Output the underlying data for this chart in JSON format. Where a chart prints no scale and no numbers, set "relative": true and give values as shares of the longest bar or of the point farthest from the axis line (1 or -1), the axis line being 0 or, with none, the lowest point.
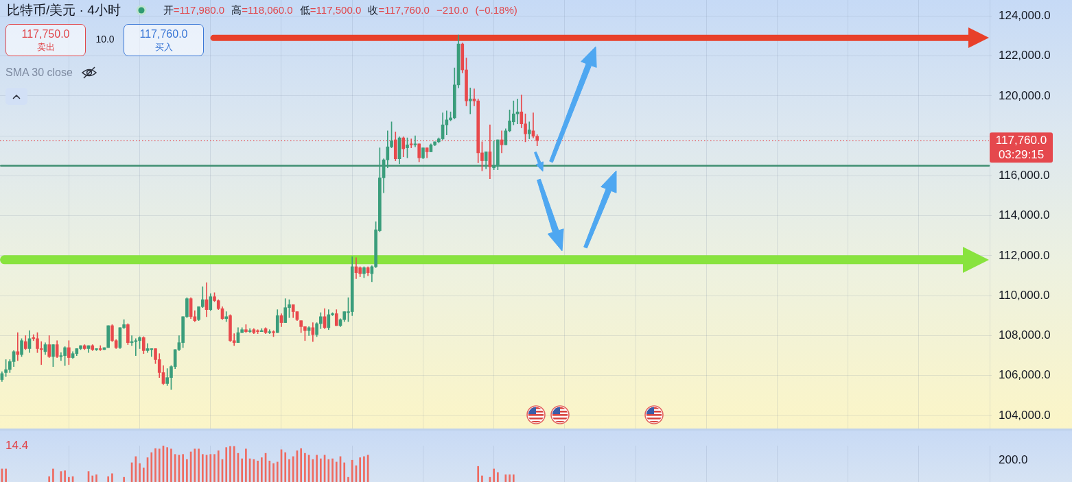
{
  "chart_data": [
    {
      "type": "candlestick",
      "title": "比特币/美元 · 4小时",
      "subtitle": "开=117,980.0 高=118,060.0 低=117,500.0 收=117,760.0 −210.0 (−0.18%)",
      "categories": [
        null,
        null,
        null,
        null,
        null,
        null,
        null,
        null,
        null,
        null,
        null,
        null,
        null,
        null,
        null,
        null,
        null,
        null,
        null,
        null,
        null,
        null,
        null,
        null,
        null,
        null,
        null,
        null,
        null,
        null,
        null,
        null,
        null,
        null,
        null,
        null,
        null,
        null,
        null,
        null,
        null,
        null,
        null,
        null,
        null,
        null,
        null,
        null,
        null,
        null,
        null,
        null,
        null,
        null,
        null,
        null,
        null,
        null,
        null,
        null,
        null,
        null,
        null,
        null,
        null,
        null,
        null,
        null,
        null,
        null,
        null,
        null,
        null,
        null,
        null,
        null,
        null,
        null,
        null,
        null,
        null,
        null,
        null,
        null,
        null,
        null,
        null,
        null,
        null,
        null,
        null,
        null,
        null,
        null,
        null,
        null,
        null,
        null,
        null,
        null,
        null,
        null,
        null,
        null,
        null,
        null,
        null,
        null,
        null,
        null,
        null,
        null,
        null,
        null,
        null,
        null,
        null,
        null,
        null,
        null,
        null,
        null,
        null,
        null,
        null,
        null,
        null,
        null,
        null,
        null,
        null,
        null,
        null,
        null,
        null,
        null,
        null,
        null,
        null,
        null,
        null,
        null,
        null,
        null,
        null,
        null,
        null,
        null,
        null,
        null,
        null,
        null,
        null,
        null,
        null,
        null,
        null,
        null,
        null,
        null,
        null,
        null,
        null,
        null,
        null,
        null,
        null,
        null,
        null,
        null,
        null,
        null,
        null,
        null,
        null,
        null,
        null,
        null,
        null,
        null,
        null,
        null,
        null,
        null,
        null,
        null,
        null,
        null,
        null,
        null,
        null,
        null,
        null,
        null,
        null,
        null,
        null,
        null,
        null,
        null,
        null,
        null,
        null,
        null,
        null,
        null,
        null,
        null,
        null,
        null,
        null,
        null,
        null,
        null,
        null,
        null,
        null,
        null,
        null,
        null,
        null,
        null,
        null,
        null,
        null,
        null,
        null,
        null,
        null,
        null,
        null,
        null,
        null,
        null,
        null,
        null,
        null,
        null,
        null,
        null,
        null,
        null,
        null,
        null,
        null,
        null,
        null,
        null,
        null,
        null,
        null,
        null
      ],
      "ohlc": [
        [
          105800,
          106200,
          105700,
          106100
        ],
        [
          106150,
          106800,
          105950,
          106300
        ],
        [
          106300,
          106800,
          106150,
          106700
        ],
        [
          106700,
          107250,
          106450,
          107200
        ],
        [
          107200,
          108150,
          106750,
          107050
        ],
        [
          107050,
          107850,
          106950,
          107750
        ],
        [
          107700,
          108000,
          107300,
          107350
        ],
        [
          107350,
          108250,
          107150,
          107850
        ],
        [
          107900,
          108050,
          107750,
          107850
        ],
        [
          107850,
          108150,
          107150,
          107350
        ],
        [
          107350,
          107700,
          106550,
          107300
        ],
        [
          107200,
          107650,
          107050,
          107550
        ],
        [
          107550,
          108000,
          106900,
          106950
        ],
        [
          106950,
          107550,
          106450,
          107550
        ],
        [
          107550,
          107750,
          106900,
          106950
        ],
        [
          106950,
          107150,
          106750,
          107000
        ],
        [
          107000,
          107450,
          106500,
          107400
        ],
        [
          107400,
          107750,
          106550,
          106900
        ],
        [
          106900,
          107200,
          106850,
          107100
        ],
        [
          107100,
          107350,
          107000,
          107350
        ],
        [
          107350,
          107500,
          107300,
          107500
        ],
        [
          107500,
          107550,
          107300,
          107350
        ],
        [
          107350,
          107500,
          107150,
          107500
        ],
        [
          107500,
          107550,
          107250,
          107300
        ],
        [
          107300,
          107350,
          107250,
          107350
        ],
        [
          107350,
          107500,
          107250,
          107300
        ],
        [
          107300,
          107400,
          107300,
          107400
        ],
        [
          107400,
          108500,
          107400,
          108500
        ],
        [
          108500,
          108550,
          107700,
          107750
        ],
        [
          107750,
          107800,
          107350,
          107400
        ],
        [
          107400,
          108400,
          107350,
          108400
        ],
        [
          108400,
          108800,
          108350,
          108550
        ],
        [
          108550,
          108600,
          107550,
          107650
        ],
        [
          107650,
          108000,
          107500,
          107700
        ],
        [
          107700,
          107850,
          107000,
          107750
        ],
        [
          107750,
          107950,
          107350,
          107900
        ],
        [
          107900,
          107950,
          107100,
          107250
        ],
        [
          107250,
          107600,
          107150,
          107350
        ],
        [
          107300,
          107350,
          106950,
          107350
        ],
        [
          107350,
          107350,
          106600,
          106800
        ],
        [
          106800,
          107100,
          105900,
          106150
        ],
        [
          106150,
          106500,
          105550,
          105600
        ],
        [
          105600,
          106350,
          105500,
          105900
        ],
        [
          105900,
          106500,
          105300,
          106450
        ],
        [
          106450,
          107300,
          106350,
          107300
        ],
        [
          107300,
          108000,
          107250,
          107650
        ],
        [
          107650,
          108950,
          107400,
          108950
        ],
        [
          108950,
          109900,
          108900,
          109850
        ],
        [
          109850,
          109900,
          108850,
          108950
        ],
        [
          108950,
          109250,
          108700,
          108750
        ],
        [
          108800,
          109450,
          108750,
          109450
        ],
        [
          109450,
          110450,
          109400,
          109800
        ],
        [
          109800,
          110650,
          108950,
          109300
        ],
        [
          109300,
          110100,
          109250,
          109950
        ],
        [
          109950,
          110150,
          109700,
          109750
        ],
        [
          109750,
          109800,
          109300,
          109350
        ],
        [
          109350,
          109450,
          108800,
          108850
        ],
        [
          108850,
          109200,
          108700,
          108950
        ],
        [
          109000,
          109050,
          107700,
          107750
        ],
        [
          107750,
          108100,
          107500,
          107650
        ],
        [
          107650,
          108400,
          107650,
          108150
        ],
        [
          108150,
          108400,
          108150,
          108300
        ],
        [
          108300,
          108550,
          108150,
          108200
        ],
        [
          108200,
          108350,
          108150,
          108250
        ],
        [
          108300,
          108350,
          108100,
          108150
        ],
        [
          108250,
          108300,
          108100,
          108200
        ],
        [
          108200,
          108350,
          108200,
          108250
        ],
        [
          108350,
          108400,
          108100,
          108150
        ],
        [
          108150,
          108300,
          108100,
          108200
        ],
        [
          108200,
          108250,
          107950,
          108150
        ],
        [
          108150,
          109300,
          108150,
          109000
        ],
        [
          109000,
          109100,
          108450,
          108650
        ],
        [
          108650,
          109850,
          108650,
          109400
        ],
        [
          109400,
          109800,
          108900,
          109550
        ],
        [
          109550,
          109550,
          108900,
          109200
        ],
        [
          109200,
          109200,
          108750,
          108800
        ],
        [
          108750,
          108750,
          108150,
          108450
        ],
        [
          108450,
          108450,
          107750,
          108250
        ],
        [
          108250,
          108450,
          108000,
          108400
        ],
        [
          108400,
          108650,
          107700,
          108050
        ],
        [
          108050,
          108650,
          107950,
          108600
        ],
        [
          108600,
          109150,
          108350,
          108950
        ],
        [
          108950,
          109350,
          108350,
          108400
        ],
        [
          108400,
          109300,
          108300,
          109050
        ],
        [
          109050,
          109150,
          109000,
          109100
        ],
        [
          109100,
          109300,
          108500,
          108500
        ],
        [
          108500,
          108850,
          108450,
          108800
        ],
        [
          108800,
          109200,
          108700,
          109200
        ],
        [
          109150,
          109900,
          108700,
          109200
        ],
        [
          109200,
          111950,
          109000,
          111450
        ],
        [
          111450,
          111900,
          110850,
          111150
        ],
        [
          111400,
          111450,
          110950,
          111100
        ],
        [
          111100,
          111450,
          110900,
          111400
        ],
        [
          111400,
          111450,
          111000,
          111150
        ],
        [
          111100,
          111500,
          110700,
          111450
        ],
        [
          111450,
          113700,
          111400,
          113300
        ],
        [
          113250,
          117400,
          113200,
          115900
        ],
        [
          115900,
          116850,
          115150,
          116800
        ],
        [
          116800,
          118250,
          116400,
          117450
        ],
        [
          117450,
          118700,
          117400,
          117750
        ],
        [
          117800,
          118200,
          116750,
          116850
        ],
        [
          116850,
          117950,
          116600,
          117900
        ],
        [
          117900,
          117950,
          116950,
          117350
        ],
        [
          117400,
          117900,
          116900,
          117550
        ],
        [
          117600,
          117850,
          117400,
          117550
        ],
        [
          117550,
          118000,
          117450,
          117600
        ],
        [
          117600,
          117600,
          116700,
          116900
        ],
        [
          116900,
          117400,
          116850,
          117400
        ],
        [
          117400,
          117400,
          116900,
          117200
        ],
        [
          117200,
          117600,
          117200,
          117550
        ],
        [
          117550,
          117700,
          117500,
          117700
        ],
        [
          117700,
          117900,
          117650,
          117850
        ],
        [
          117850,
          119150,
          117800,
          118550
        ],
        [
          118550,
          119250,
          118050,
          118800
        ],
        [
          118800,
          119200,
          118750,
          118900
        ],
        [
          118900,
          121400,
          118850,
          120550
        ],
        [
          120550,
          123050,
          120400,
          122600
        ],
        [
          122600,
          122650,
          121150,
          121300
        ],
        [
          121300,
          121900,
          119500,
          119750
        ],
        [
          119750,
          120400,
          119100,
          119850
        ],
        [
          119850,
          120350,
          119500,
          119750
        ],
        [
          119750,
          119850,
          116650,
          117150
        ],
        [
          117150,
          117700,
          116250,
          116750
        ],
        [
          116750,
          117200,
          116350,
          117200
        ],
        [
          117200,
          118550,
          115850,
          116450
        ],
        [
          116400,
          117750,
          116300,
          116500
        ],
        [
          116500,
          117800,
          116300,
          117800
        ],
        [
          117800,
          118250,
          117150,
          117550
        ],
        [
          117550,
          118350,
          117550,
          118250
        ],
        [
          118250,
          119300,
          118200,
          118750
        ],
        [
          118700,
          119750,
          118550,
          119100
        ],
        [
          119100,
          119850,
          118600,
          119200
        ],
        [
          119200,
          120050,
          118400,
          118600
        ],
        [
          118600,
          119100,
          117700,
          118100
        ],
        [
          118100,
          118700,
          117850,
          118300
        ],
        [
          118250,
          119150,
          117900,
          117980
        ],
        [
          117980,
          118060,
          117500,
          117760
        ],
        null,
        null,
        null,
        null,
        null,
        null,
        null,
        null,
        null,
        null,
        null,
        null,
        null,
        null,
        null,
        null,
        null,
        null,
        null,
        null,
        null,
        null,
        null,
        null,
        null,
        null,
        null,
        null,
        null,
        null,
        null,
        null,
        null,
        null,
        null,
        null,
        null,
        null,
        null,
        null,
        null,
        null,
        null,
        null,
        null,
        null,
        null,
        null,
        null,
        null,
        null,
        null,
        null,
        null,
        null,
        null,
        null,
        null,
        null,
        null,
        null,
        null,
        null,
        null,
        null,
        null,
        null,
        null,
        null,
        null,
        null,
        null,
        null,
        null,
        null,
        null,
        null,
        null,
        null,
        null,
        null,
        null,
        null,
        null,
        null,
        null,
        null,
        null,
        null,
        null,
        null,
        null,
        null,
        null,
        null,
        null,
        null,
        null,
        null,
        null,
        null,
        null,
        null,
        null,
        null,
        null,
        null,
        null,
        null,
        null,
        null,
        null,
        null,
        null,
        null
      ],
      "colors": [
        "#3a9d7b",
        "#3a9d7b",
        "#3a9d7b",
        "#3a9d7b",
        "#e8494c",
        "#3a9d7b",
        "#e8494c",
        "#3a9d7b",
        "#e8494c",
        "#e8494c",
        "#e8494c",
        "#3a9d7b",
        "#e8494c",
        "#3a9d7b",
        "#e8494c",
        "#3a9d7b",
        "#3a9d7b",
        "#e8494c",
        "#3a9d7b",
        "#3a9d7b",
        "#3a9d7b",
        "#e8494c",
        "#3a9d7b",
        "#e8494c",
        "#3a9d7b",
        "#e8494c",
        "#3a9d7b",
        "#3a9d7b",
        "#e8494c",
        "#e8494c",
        "#3a9d7b",
        "#3a9d7b",
        "#e8494c",
        "#3a9d7b",
        "#3a9d7b",
        "#3a9d7b",
        "#e8494c",
        "#3a9d7b",
        "#3a9d7b",
        "#e8494c",
        "#e8494c",
        "#e8494c",
        "#3a9d7b",
        "#3a9d7b",
        "#3a9d7b",
        "#3a9d7b",
        "#3a9d7b",
        "#3a9d7b",
        "#e8494c",
        "#e8494c",
        "#3a9d7b",
        "#3a9d7b",
        "#e8494c",
        "#3a9d7b",
        "#e8494c",
        "#e8494c",
        "#e8494c",
        "#3a9d7b",
        "#e8494c",
        "#e8494c",
        "#3a9d7b",
        "#3a9d7b",
        "#e8494c",
        "#3a9d7b",
        "#e8494c",
        "#e8494c",
        "#3a9d7b",
        "#e8494c",
        "#3a9d7b",
        "#e8494c",
        "#3a9d7b",
        "#e8494c",
        "#3a9d7b",
        "#3a9d7b",
        "#e8494c",
        "#e8494c",
        "#e8494c",
        "#e8494c",
        "#3a9d7b",
        "#e8494c",
        "#3a9d7b",
        "#3a9d7b",
        "#e8494c",
        "#3a9d7b",
        "#3a9d7b",
        "#e8494c",
        "#3a9d7b",
        "#3a9d7b",
        "#3a9d7b",
        "#3a9d7b",
        "#e8494c",
        "#e8494c",
        "#3a9d7b",
        "#e8494c",
        "#3a9d7b",
        "#3a9d7b",
        "#3a9d7b",
        "#3a9d7b",
        "#3a9d7b",
        "#3a9d7b",
        "#e8494c",
        "#3a9d7b",
        "#e8494c",
        "#3a9d7b",
        "#e8494c",
        "#3a9d7b",
        "#e8494c",
        "#3a9d7b",
        "#e8494c",
        "#3a9d7b",
        "#3a9d7b",
        "#3a9d7b",
        "#3a9d7b",
        "#3a9d7b",
        "#3a9d7b",
        "#3a9d7b",
        "#3a9d7b",
        "#e8494c",
        "#e8494c",
        "#3a9d7b",
        "#e8494c",
        "#e8494c",
        "#e8494c",
        "#3a9d7b",
        "#e8494c",
        "#3a9d7b",
        "#3a9d7b",
        "#e8494c",
        "#3a9d7b",
        "#3a9d7b",
        "#3a9d7b",
        "#3a9d7b",
        "#e8494c",
        "#e8494c",
        "#3a9d7b",
        "#e8494c",
        "#e8494c",
        null,
        null,
        null,
        null,
        null,
        null,
        null,
        null,
        null,
        null,
        null,
        null,
        null,
        null,
        null,
        null,
        null,
        null,
        null,
        null,
        null,
        null,
        null,
        null,
        null,
        null,
        null,
        null,
        null,
        null,
        null,
        null,
        null,
        null,
        null,
        null,
        null,
        null,
        null,
        null,
        null,
        null,
        null,
        null,
        null,
        null,
        null,
        null,
        null,
        null,
        null,
        null,
        null,
        null,
        null,
        null,
        null,
        null,
        null,
        null,
        null,
        null,
        null,
        null,
        null,
        null,
        null,
        null,
        null,
        null,
        null,
        null,
        null,
        null,
        null,
        null,
        null,
        null,
        null,
        null,
        null,
        null,
        null,
        null,
        null,
        null,
        null,
        null,
        null,
        null,
        null,
        null,
        null,
        null,
        null,
        null,
        null,
        null,
        null,
        null,
        null,
        null,
        null,
        null,
        null,
        null,
        null,
        null,
        null,
        null,
        null,
        null,
        null,
        null,
        null
      ],
      "ylim": [
        103350,
        124800
      ],
      "yticks": [
        {
          "value": 104000,
          "label": "104,000.0"
        },
        {
          "value": 106000,
          "label": "106,000.0"
        },
        {
          "value": 108000,
          "label": "108,000.0"
        },
        {
          "value": 110000,
          "label": "110,000.0"
        },
        {
          "value": 112000,
          "label": "112,000.0"
        },
        {
          "value": 114000,
          "label": "114,000.0"
        },
        {
          "value": 116000,
          "label": "116,000.0"
        },
        {
          "value": 118000,
          "label": null
        },
        {
          "value": 120000,
          "label": "120,000.0"
        },
        {
          "value": 122000,
          "label": "122,000.0"
        },
        {
          "value": 124000,
          "label": "124,000.0"
        }
      ],
      "grid": true,
      "tick_labels": "y",
      "ref_lines": [
        {
          "axis": "y",
          "value": 122900,
          "color": "#e8402a"
        },
        {
          "axis": "y",
          "value": 116500,
          "color": "#3f8f72"
        },
        {
          "axis": "y",
          "value": 111800,
          "color": "#88e33e"
        },
        {
          "axis": "y",
          "value": 117760,
          "label": "117,760.0",
          "color": "#e5484d",
          "line_style": "dotted"
        }
      ],
      "annotations": [
        "117,750.0",
        "卖出",
        "10.0",
        "117,760.0",
        "买入",
        "SMA 30 close",
        "03:29:15"
      ]
    },
    {
      "type": "bar",
      "relative": true,
      "color": "#ee6a60",
      "grid": "x",
      "categories": [
        null,
        null,
        null,
        null,
        null,
        null,
        null,
        null,
        null,
        null,
        null,
        null,
        null,
        null,
        null,
        null,
        null,
        null,
        null,
        null,
        null,
        null,
        null,
        null,
        null,
        null,
        null,
        null,
        null,
        null,
        null,
        null,
        null,
        null,
        null,
        null,
        null,
        null,
        null,
        null,
        null,
        null,
        null,
        null,
        null,
        null,
        null,
        null,
        null,
        null,
        null,
        null,
        null,
        null,
        null,
        null,
        null,
        null,
        null,
        null,
        null,
        null,
        null,
        null,
        null,
        null,
        null,
        null,
        null,
        null,
        null,
        null,
        null,
        null,
        null,
        null,
        null,
        null,
        null,
        null,
        null,
        null,
        null,
        null,
        null,
        null,
        null,
        null,
        null,
        null,
        null,
        null,
        null,
        null,
        null,
        null,
        null,
        null,
        null,
        null,
        null,
        null,
        null,
        null,
        null,
        null,
        null,
        null,
        null,
        null,
        null,
        null,
        null,
        null,
        null,
        null,
        null,
        null,
        null,
        null,
        null,
        null,
        null,
        null,
        null,
        null,
        null,
        null,
        null,
        null,
        null,
        null,
        null,
        null,
        null,
        null,
        null,
        null,
        null,
        null,
        null,
        null,
        null,
        null,
        null,
        null,
        null,
        null,
        null,
        null,
        null,
        null,
        null,
        null,
        null,
        null,
        null,
        null,
        null,
        null,
        null,
        null,
        null,
        null,
        null,
        null,
        null,
        null,
        null,
        null,
        null,
        null,
        null,
        null,
        null,
        null,
        null,
        null,
        null,
        null,
        null,
        null,
        null,
        null,
        null,
        null,
        null,
        null,
        null,
        null,
        null,
        null,
        null,
        null,
        null,
        null,
        null,
        null,
        null,
        null,
        null,
        null,
        null,
        null,
        null,
        null,
        null,
        null,
        null,
        null,
        null,
        null,
        null,
        null,
        null,
        null,
        null,
        null,
        null,
        null,
        null,
        null,
        null,
        null,
        null,
        null,
        null,
        null,
        null,
        null,
        null,
        null,
        null,
        null,
        null,
        null,
        null,
        null,
        null,
        null,
        null,
        null,
        null,
        null,
        null,
        null,
        null,
        null,
        null,
        null,
        null,
        null
      ],
      "values": [
        0.36,
        0.36,
        null,
        null,
        null,
        null,
        null,
        null,
        null,
        null,
        null,
        null,
        0.15,
        0.36,
        null,
        0.29,
        0.31,
        0.13,
        0.15,
        null,
        null,
        null,
        0.29,
        0.17,
        0.2,
        null,
        null,
        0.15,
        0.23,
        null,
        null,
        0.13,
        null,
        0.53,
        0.7,
        0.51,
        0.39,
        0.67,
        0.81,
        0.92,
        0.91,
        1,
        0.95,
        0.91,
        0.76,
        0.74,
        0.76,
        0.62,
        0.83,
        0.91,
        0.91,
        0.76,
        0.74,
        0.76,
        0.76,
        0.86,
        0.62,
        0.95,
        0.98,
        0.98,
        0.79,
        0.64,
        0.91,
        0.64,
        0.62,
        0.58,
        0.67,
        0.79,
        0.58,
        0.51,
        0.55,
        0.89,
        0.81,
        0.62,
        0.7,
        0.86,
        0.92,
        0.79,
        0.74,
        0.62,
        0.74,
        0.64,
        0.74,
        0.62,
        0.64,
        0.55,
        0.7,
        0.53,
        0.13,
        0.6,
        0.45,
        0.67,
        0.7,
        0.74,
        null,
        null,
        null,
        null,
        null,
        null,
        null,
        null,
        null,
        null,
        null,
        null,
        null,
        null,
        null,
        null,
        null,
        null,
        null,
        null,
        null,
        null,
        null,
        null,
        null,
        null,
        null,
        0.43,
        0.17,
        null,
        0.13,
        0.36,
        0.26,
        null,
        0.2,
        0.2,
        0.2,
        null,
        null,
        null,
        null,
        null,
        null,
        null,
        null,
        null,
        null,
        null,
        null,
        null,
        null,
        null,
        null,
        null,
        null,
        null,
        null,
        null,
        null,
        null,
        null,
        null,
        null,
        null,
        null,
        null,
        null,
        null,
        null,
        null,
        null,
        null,
        null,
        null,
        null,
        null,
        null,
        null,
        null,
        null,
        null,
        null,
        null,
        null,
        null,
        null,
        null,
        null,
        null,
        null,
        null,
        null,
        null,
        null,
        null,
        null,
        null,
        null,
        null,
        null,
        null,
        null,
        null,
        null,
        null,
        null,
        null,
        null,
        null,
        null,
        null,
        null,
        null,
        null,
        null,
        null,
        null,
        null,
        null,
        null,
        null,
        null,
        null,
        null,
        null,
        null,
        null,
        null,
        null,
        null,
        null,
        null,
        null,
        null,
        null,
        null,
        null,
        null,
        null,
        null,
        null,
        null,
        null,
        null,
        null,
        null,
        null,
        null,
        null,
        null,
        null,
        null,
        null,
        null,
        null,
        null,
        null,
        null
      ],
      "annotations": [
        "14.4",
        "200.0"
      ]
    }
  ]
}
